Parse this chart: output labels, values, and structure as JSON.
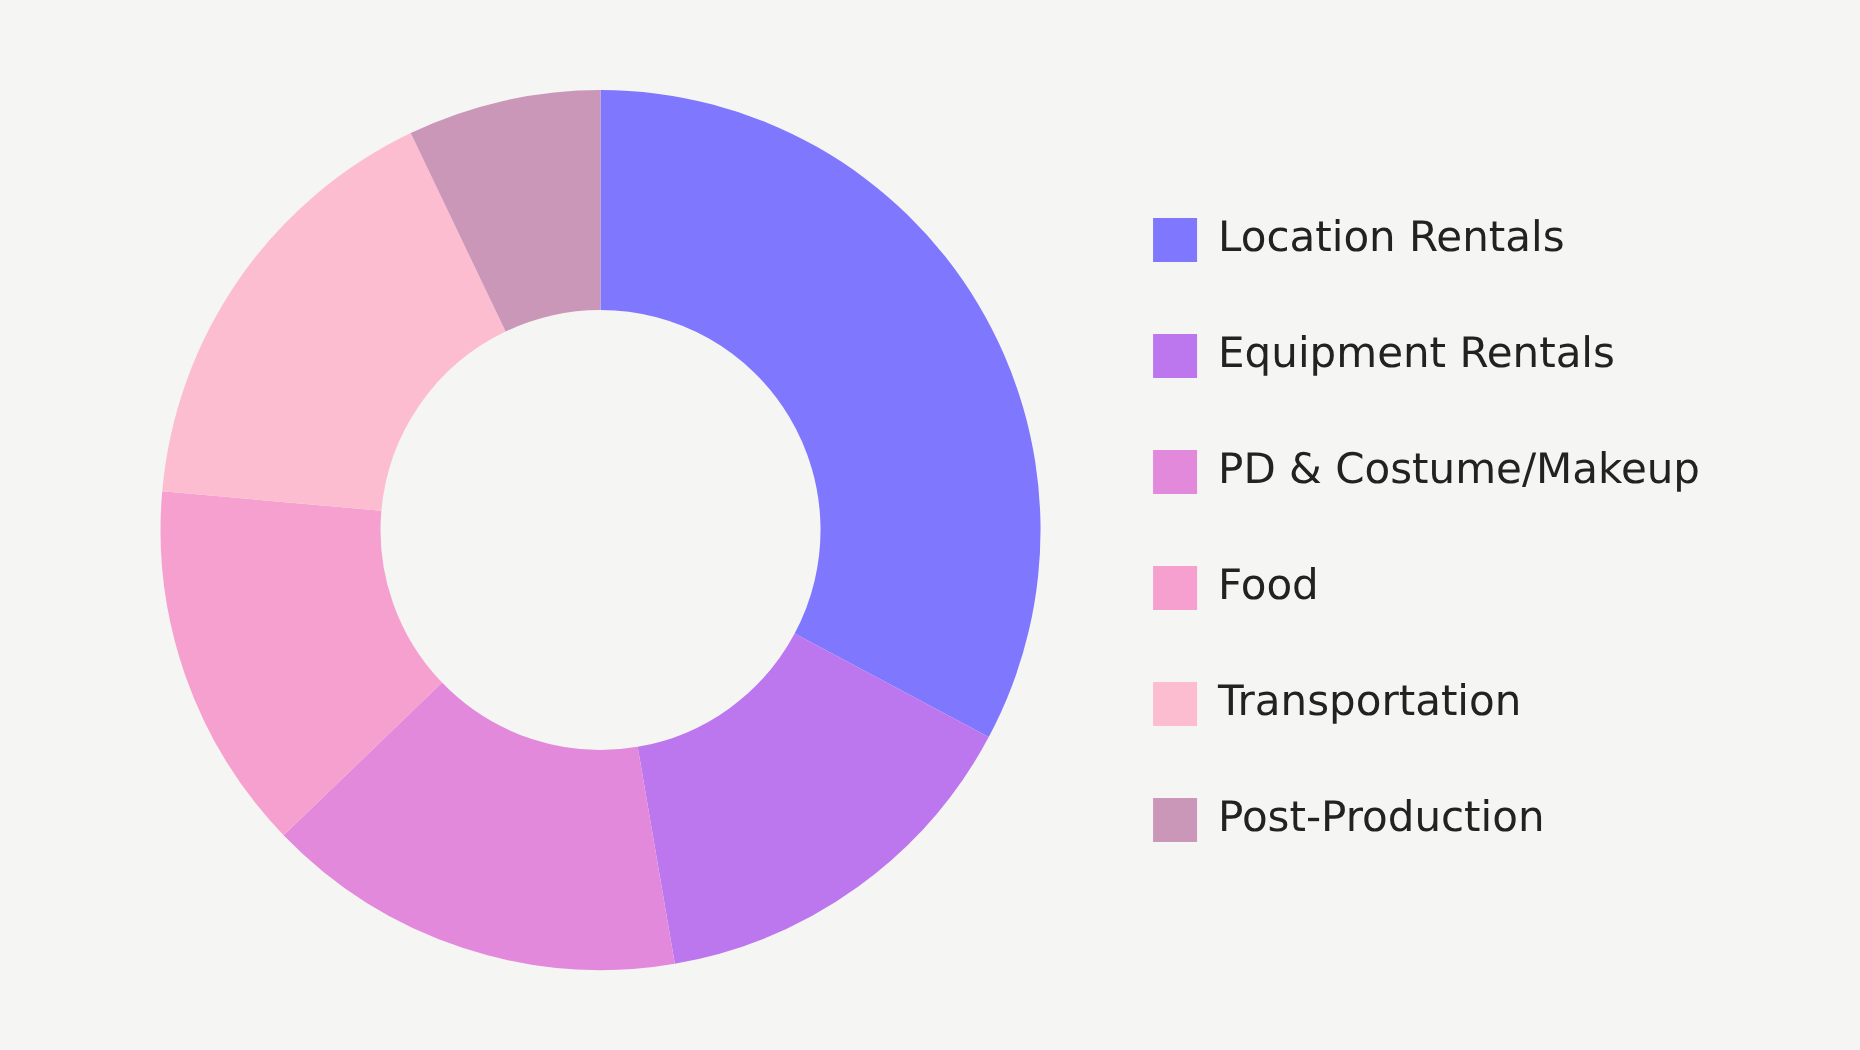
{
  "chart_data": {
    "type": "donut",
    "categories": [
      "Location Rentals",
      "Equipment Rentals",
      "PD & Costume/Makeup",
      "Food",
      "Transportation",
      "Post-Production"
    ],
    "values": [
      32.8,
      14.5,
      15.5,
      13.6,
      16.5,
      7.1
    ],
    "colors": [
      "#7f77fe",
      "#bd77ee",
      "#e389dc",
      "#f6a0d0",
      "#fdbdd0",
      "#cb97b8"
    ],
    "legend": "right"
  }
}
